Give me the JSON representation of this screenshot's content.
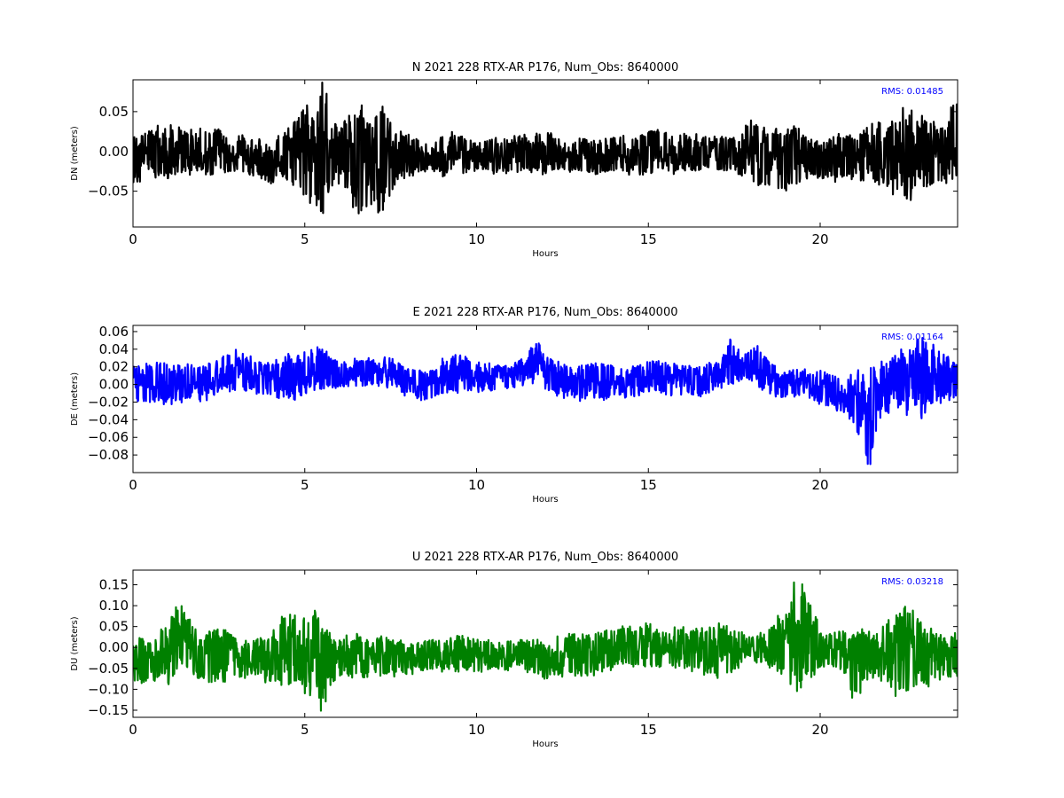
{
  "chart_data": [
    {
      "type": "line",
      "title": "N 2021 228 RTX-AR  P176, Num_Obs: 8640000",
      "xlabel": "Hours",
      "ylabel": "DN (meters)",
      "xlim": [
        0,
        24
      ],
      "ylim": [
        -0.095,
        0.09
      ],
      "xticks": [
        "0",
        "5",
        "10",
        "15",
        "20"
      ],
      "yticks": [
        "−0.05",
        "0.00",
        "0.05"
      ],
      "yticks_values": [
        -0.05,
        0.0,
        0.05
      ],
      "rms_label": "RMS:  0.01485",
      "color": "#000000",
      "annotation_color": "#0000ff",
      "series": [
        {
          "x": [
            0,
            0.5,
            1,
            1.5,
            2,
            2.5,
            3,
            3.5,
            4,
            4.5,
            5,
            5.3,
            5.5,
            5.7,
            6,
            6.3,
            6.6,
            7,
            7.4,
            7.8,
            8.2,
            8.6,
            9,
            9.5,
            10,
            10.5,
            11,
            11.5,
            12,
            12.5,
            13,
            13.5,
            14,
            14.5,
            15,
            15.5,
            16,
            16.5,
            17,
            17.5,
            18,
            18.5,
            19,
            19.5,
            20,
            20.5,
            21,
            21.5,
            22,
            22.5,
            23,
            23.5,
            24
          ],
          "upper": [
            0.025,
            0.03,
            0.042,
            0.03,
            0.03,
            0.028,
            0.022,
            0.02,
            0.012,
            0.03,
            0.055,
            0.07,
            0.09,
            0.065,
            0.03,
            0.058,
            0.06,
            0.062,
            0.055,
            0.025,
            0.02,
            0.012,
            0.02,
            0.028,
            0.012,
            0.02,
            0.02,
            0.022,
            0.03,
            0.012,
            0.02,
            0.012,
            0.022,
            0.018,
            0.03,
            0.03,
            0.025,
            0.022,
            0.02,
            0.02,
            0.04,
            0.035,
            0.04,
            0.025,
            0.015,
            0.025,
            0.022,
            0.042,
            0.035,
            0.06,
            0.048,
            0.032,
            0.085
          ],
          "lower": [
            -0.045,
            -0.035,
            -0.035,
            -0.03,
            -0.03,
            -0.03,
            -0.03,
            -0.035,
            -0.045,
            -0.04,
            -0.065,
            -0.08,
            -0.095,
            -0.06,
            -0.04,
            -0.075,
            -0.08,
            -0.088,
            -0.07,
            -0.035,
            -0.03,
            -0.025,
            -0.035,
            -0.028,
            -0.025,
            -0.028,
            -0.03,
            -0.028,
            -0.03,
            -0.025,
            -0.028,
            -0.03,
            -0.028,
            -0.03,
            -0.03,
            -0.03,
            -0.028,
            -0.028,
            -0.028,
            -0.03,
            -0.045,
            -0.05,
            -0.058,
            -0.035,
            -0.035,
            -0.04,
            -0.035,
            -0.04,
            -0.05,
            -0.07,
            -0.055,
            -0.045,
            -0.035
          ],
          "mean": [
            -0.005,
            -0.002,
            0.0,
            -0.002,
            -0.002,
            -0.002,
            -0.004,
            -0.005,
            -0.01,
            -0.005,
            0.0,
            0.0,
            0.0,
            0.0,
            -0.005,
            -0.005,
            -0.008,
            -0.01,
            -0.005,
            -0.005,
            -0.004,
            -0.005,
            -0.006,
            0.0,
            -0.005,
            -0.004,
            -0.004,
            -0.003,
            0.0,
            -0.006,
            -0.004,
            -0.008,
            -0.003,
            -0.005,
            0.0,
            0.0,
            -0.002,
            -0.003,
            -0.004,
            -0.005,
            -0.002,
            -0.006,
            -0.008,
            -0.005,
            -0.01,
            -0.007,
            -0.006,
            0.0,
            -0.006,
            -0.005,
            -0.004,
            -0.006,
            0.01
          ]
        }
      ]
    },
    {
      "type": "line",
      "title": "E 2021 228 RTX-AR  P176, Num_Obs: 8640000",
      "xlabel": "Hours",
      "ylabel": "DE (meters)",
      "xlim": [
        0,
        24
      ],
      "ylim": [
        -0.1,
        0.067
      ],
      "xticks": [
        "0",
        "5",
        "10",
        "15",
        "20"
      ],
      "yticks": [
        "−0.08",
        "−0.06",
        "−0.04",
        "−0.02",
        "0.00",
        "0.02",
        "0.04",
        "0.06"
      ],
      "yticks_values": [
        -0.08,
        -0.06,
        -0.04,
        -0.02,
        0.0,
        0.02,
        0.04,
        0.06
      ],
      "rms_label": "RMS:  0.01164",
      "color": "#0000ff",
      "annotation_color": "#0000ff",
      "series": [
        {
          "x": [
            0,
            0.5,
            1,
            1.5,
            2,
            2.5,
            3,
            3.5,
            4,
            4.5,
            5,
            5.5,
            6,
            6.5,
            7,
            7.5,
            8,
            8.5,
            9,
            9.5,
            10,
            10.5,
            11,
            11.5,
            11.8,
            12,
            12.5,
            13,
            13.5,
            14,
            14.5,
            15,
            15.5,
            16,
            16.5,
            17,
            17.4,
            17.8,
            18.2,
            18.6,
            19,
            19.5,
            20,
            20.5,
            21,
            21.4,
            21.8,
            22.2,
            22.6,
            22.9,
            23.3,
            23.7,
            24
          ],
          "upper": [
            0.022,
            0.025,
            0.025,
            0.025,
            0.02,
            0.032,
            0.043,
            0.03,
            0.025,
            0.035,
            0.04,
            0.043,
            0.025,
            0.03,
            0.03,
            0.033,
            0.02,
            0.015,
            0.03,
            0.035,
            0.025,
            0.025,
            0.02,
            0.04,
            0.05,
            0.035,
            0.028,
            0.025,
            0.025,
            0.022,
            0.02,
            0.03,
            0.028,
            0.025,
            0.025,
            0.025,
            0.053,
            0.035,
            0.045,
            0.025,
            0.015,
            0.02,
            0.02,
            0.01,
            0.015,
            0.02,
            0.032,
            0.04,
            0.045,
            0.067,
            0.045,
            0.035,
            0.025
          ],
          "lower": [
            -0.02,
            -0.02,
            -0.025,
            -0.02,
            -0.02,
            -0.015,
            -0.01,
            -0.01,
            -0.015,
            -0.02,
            -0.015,
            -0.01,
            -0.005,
            -0.005,
            -0.005,
            -0.005,
            -0.015,
            -0.02,
            -0.015,
            -0.01,
            -0.01,
            -0.01,
            -0.005,
            0.0,
            0.0,
            -0.01,
            -0.015,
            -0.02,
            -0.02,
            -0.015,
            -0.015,
            -0.01,
            -0.012,
            -0.015,
            -0.015,
            -0.01,
            0.0,
            0.0,
            -0.005,
            -0.015,
            -0.015,
            -0.015,
            -0.025,
            -0.03,
            -0.045,
            -0.1,
            -0.045,
            -0.03,
            -0.04,
            -0.05,
            -0.03,
            -0.025,
            -0.015
          ],
          "mean": [
            0.0,
            0.002,
            0.0,
            0.002,
            0.0,
            0.008,
            0.015,
            0.01,
            0.005,
            0.008,
            0.012,
            0.015,
            0.01,
            0.012,
            0.012,
            0.013,
            0.003,
            -0.002,
            0.007,
            0.012,
            0.008,
            0.008,
            0.008,
            0.02,
            0.025,
            0.012,
            0.007,
            0.003,
            0.003,
            0.004,
            0.003,
            0.01,
            0.008,
            0.005,
            0.005,
            0.008,
            0.025,
            0.018,
            0.02,
            0.005,
            0.0,
            0.003,
            -0.002,
            -0.01,
            -0.015,
            -0.03,
            -0.005,
            0.005,
            0.002,
            0.008,
            0.008,
            0.005,
            0.005
          ]
        }
      ]
    },
    {
      "type": "line",
      "title": "U 2021 228 RTX-AR  P176, Num_Obs: 8640000",
      "xlabel": "Hours",
      "ylabel": "DU (meters)",
      "xlim": [
        0,
        24
      ],
      "ylim": [
        -0.167,
        0.185
      ],
      "xticks": [
        "0",
        "5",
        "10",
        "15",
        "20"
      ],
      "yticks": [
        "−0.15",
        "−0.10",
        "−0.05",
        "0.00",
        "0.05",
        "0.10",
        "0.15"
      ],
      "yticks_values": [
        -0.15,
        -0.1,
        -0.05,
        0.0,
        0.05,
        0.1,
        0.15
      ],
      "rms_label": "RMS:  0.03218",
      "color": "#008000",
      "annotation_color": "#0000ff",
      "series": [
        {
          "x": [
            0,
            0.5,
            1,
            1.3,
            1.6,
            2,
            2.3,
            2.6,
            3,
            3.5,
            4,
            4.5,
            5,
            5.3,
            5.5,
            5.8,
            6.2,
            6.6,
            7,
            7.5,
            8,
            8.5,
            9,
            9.5,
            10,
            10.5,
            11,
            11.5,
            12,
            12.5,
            13,
            13.5,
            14,
            14.5,
            15,
            15.5,
            16,
            16.5,
            17,
            17.5,
            18,
            18.5,
            19,
            19.3,
            19.6,
            20,
            20.3,
            20.6,
            21,
            21.5,
            22,
            22.5,
            23,
            23.5,
            24
          ],
          "upper": [
            0.02,
            0.03,
            0.07,
            0.105,
            0.09,
            0.02,
            0.055,
            0.06,
            0.03,
            0.02,
            0.03,
            0.105,
            0.075,
            0.1,
            0.08,
            0.02,
            0.03,
            0.04,
            0.03,
            0.025,
            0.015,
            0.02,
            0.02,
            0.03,
            0.02,
            0.02,
            0.025,
            0.02,
            0.025,
            0.03,
            0.04,
            0.045,
            0.05,
            0.06,
            0.06,
            0.05,
            0.05,
            0.045,
            0.06,
            0.05,
            0.03,
            0.05,
            0.1,
            0.185,
            0.14,
            0.05,
            0.04,
            0.05,
            0.04,
            0.05,
            0.07,
            0.11,
            0.06,
            0.03,
            0.04
          ],
          "lower": [
            -0.1,
            -0.09,
            -0.09,
            -0.08,
            -0.06,
            -0.08,
            -0.085,
            -0.09,
            -0.08,
            -0.07,
            -0.09,
            -0.09,
            -0.11,
            -0.12,
            -0.167,
            -0.09,
            -0.07,
            -0.08,
            -0.07,
            -0.07,
            -0.07,
            -0.06,
            -0.06,
            -0.06,
            -0.06,
            -0.06,
            -0.06,
            -0.06,
            -0.09,
            -0.07,
            -0.07,
            -0.08,
            -0.06,
            -0.05,
            -0.05,
            -0.05,
            -0.055,
            -0.06,
            -0.09,
            -0.06,
            -0.04,
            -0.05,
            -0.07,
            -0.11,
            -0.1,
            -0.05,
            -0.05,
            -0.06,
            -0.14,
            -0.07,
            -0.12,
            -0.12,
            -0.1,
            -0.08,
            -0.07
          ],
          "mean": [
            -0.04,
            -0.03,
            -0.01,
            0.01,
            0.015,
            -0.03,
            -0.015,
            -0.015,
            -0.025,
            -0.025,
            -0.03,
            0.0,
            -0.02,
            -0.01,
            -0.04,
            -0.035,
            -0.02,
            -0.02,
            -0.02,
            -0.02,
            -0.025,
            -0.02,
            -0.02,
            -0.015,
            -0.02,
            -0.02,
            -0.02,
            -0.02,
            -0.03,
            -0.02,
            -0.015,
            -0.015,
            -0.005,
            0.005,
            0.005,
            0.0,
            0.0,
            -0.005,
            -0.01,
            -0.005,
            -0.005,
            0.0,
            0.01,
            0.03,
            0.02,
            -0.005,
            -0.005,
            -0.005,
            -0.02,
            -0.01,
            -0.025,
            -0.005,
            -0.02,
            -0.025,
            -0.015
          ]
        }
      ]
    }
  ]
}
